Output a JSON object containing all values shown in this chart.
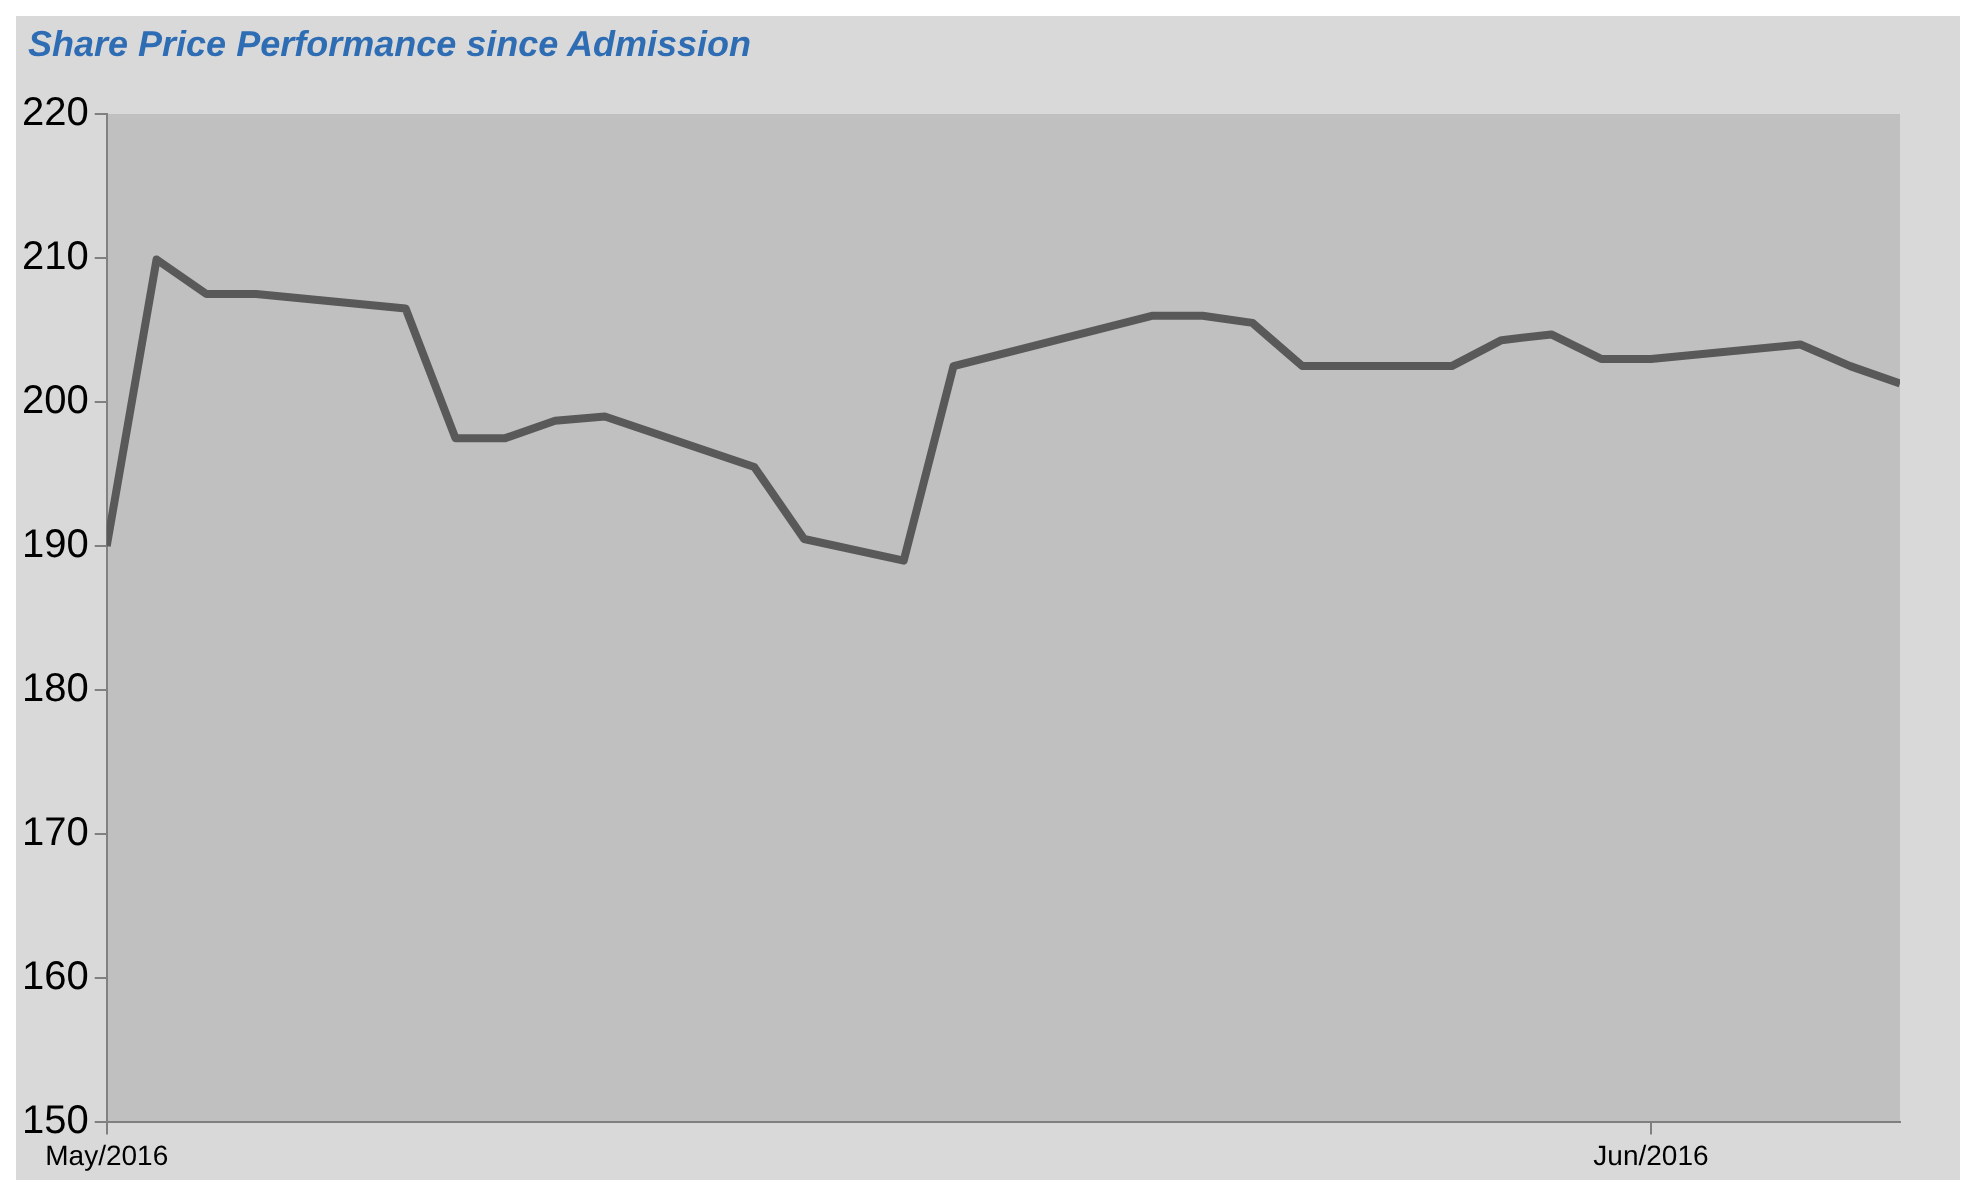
{
  "chart_data": {
    "type": "line",
    "title": "Share Price Performance since Admission",
    "x": [
      "2016-05-01",
      "2016-05-02",
      "2016-05-03",
      "2016-05-04",
      "2016-05-07",
      "2016-05-08",
      "2016-05-09",
      "2016-05-10",
      "2016-05-11",
      "2016-05-14",
      "2016-05-15",
      "2016-05-17",
      "2016-05-18",
      "2016-05-22",
      "2016-05-23",
      "2016-05-24",
      "2016-05-25",
      "2016-05-28",
      "2016-05-29",
      "2016-05-30",
      "2016-05-31",
      "2016-06-01",
      "2016-06-04",
      "2016-06-05",
      "2016-06-06"
    ],
    "series": [
      {
        "color": "#595959",
        "values": [
          190,
          209.9,
          207.5,
          207.5,
          206.5,
          197.5,
          197.5,
          198.7,
          199,
          195.5,
          190.5,
          189,
          202.5,
          206,
          206,
          205.5,
          202.5,
          202.5,
          204.3,
          204.7,
          203,
          203,
          204,
          202.5,
          201.3
        ]
      }
    ],
    "xlim": [
      "2016-05-01",
      "2016-06-06"
    ],
    "xticks": [
      {
        "value": "2016-05-01",
        "label": "May/2016"
      },
      {
        "value": "2016-06-01",
        "label": "Jun/2016"
      }
    ],
    "ylim": [
      150,
      220
    ],
    "yticks": [
      150,
      160,
      170,
      180,
      190,
      200,
      210,
      220
    ],
    "grid": false,
    "legend": false,
    "marker": "none",
    "line_style": "solid"
  }
}
